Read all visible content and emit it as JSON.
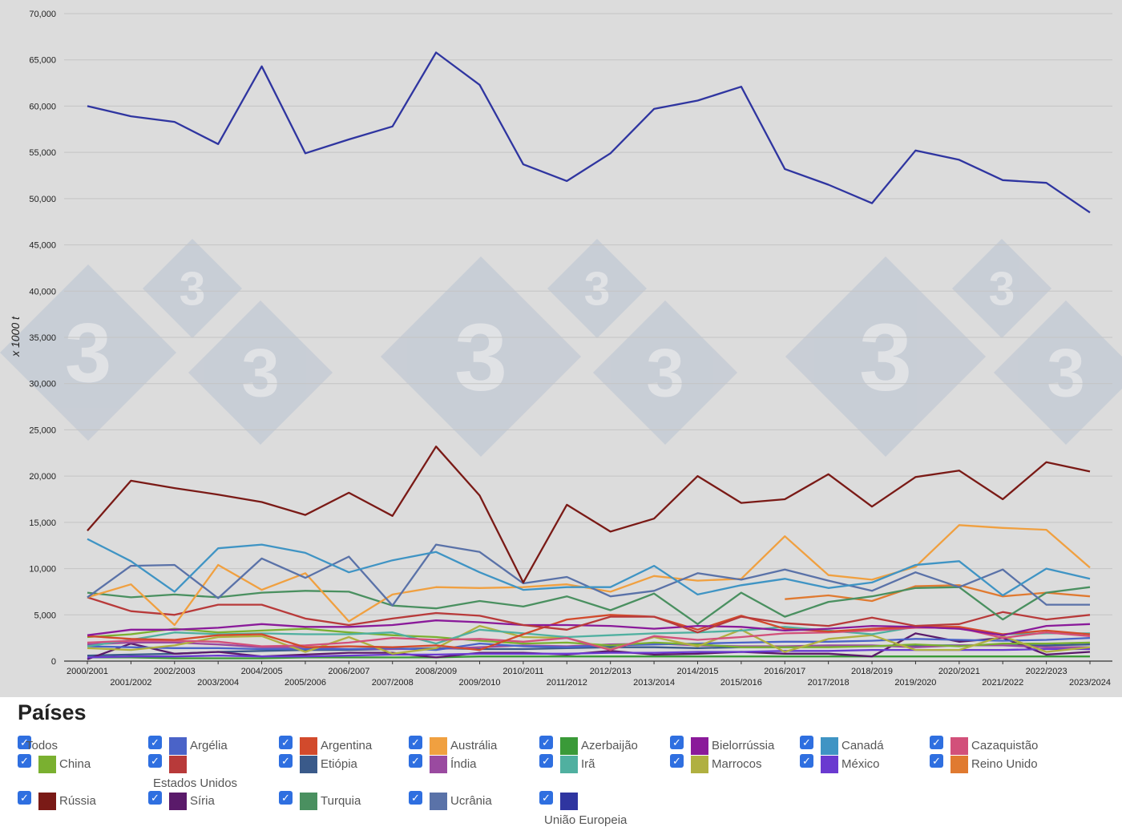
{
  "legend": {
    "title": "Países",
    "check_glyph": "✓",
    "items": [
      {
        "label": "Todos",
        "color": null
      },
      {
        "label": "Argélia",
        "color": "#4a63c8"
      },
      {
        "label": "Argentina",
        "color": "#d24a2c"
      },
      {
        "label": "Austrália",
        "color": "#f0a040"
      },
      {
        "label": "Azerbaijão",
        "color": "#3a9a38"
      },
      {
        "label": "Bielorrússia",
        "color": "#8a1a9a"
      },
      {
        "label": "Canadá",
        "color": "#3f94c4"
      },
      {
        "label": "Cazaquistão",
        "color": "#d2507a"
      },
      {
        "label": "China",
        "color": "#7ab030"
      },
      {
        "label": "Estados Unidos",
        "color": "#b83a3a"
      },
      {
        "label": "Etiópia",
        "color": "#3a5a8a"
      },
      {
        "label": "Índia",
        "color": "#9a4aa0"
      },
      {
        "label": "Irã",
        "color": "#50b0a0"
      },
      {
        "label": "Marrocos",
        "color": "#b0b040"
      },
      {
        "label": "México",
        "color": "#6a3ad0"
      },
      {
        "label": "Reino Unido",
        "color": "#e07a30"
      },
      {
        "label": "Rússia",
        "color": "#7a1a16"
      },
      {
        "label": "Síria",
        "color": "#5a1a6a"
      },
      {
        "label": "Turquia",
        "color": "#4a9060"
      },
      {
        "label": "Ucrânia",
        "color": "#5a72a8"
      },
      {
        "label": "União Europeia",
        "color": "#2f35a0"
      }
    ]
  },
  "chart_data": {
    "type": "line",
    "ylabel": "x 1000 t",
    "ylim": [
      0,
      70000
    ],
    "yticks": [
      0,
      5000,
      10000,
      15000,
      20000,
      25000,
      30000,
      35000,
      40000,
      45000,
      50000,
      55000,
      60000,
      65000,
      70000
    ],
    "ytick_labels": [
      "0",
      "5,000",
      "10,000",
      "15,000",
      "20,000",
      "25,000",
      "30,000",
      "35,000",
      "40,000",
      "45,000",
      "50,000",
      "55,000",
      "60,000",
      "65,000",
      "70,000"
    ],
    "grid": true,
    "background_color": "#dcdcdc",
    "watermark": "3",
    "categories": [
      "2000/2001",
      "2001/2002",
      "2002/2003",
      "2003/2004",
      "2004/2005",
      "2005/2006",
      "2006/2007",
      "2007/2008",
      "2008/2009",
      "2009/2010",
      "2010/2011",
      "2011/2012",
      "2012/2013",
      "2013/2014",
      "2014/2015",
      "2015/2016",
      "2016/2017",
      "2017/2018",
      "2018/2019",
      "2019/2020",
      "2020/2021",
      "2021/2022",
      "2022/2023",
      "2023/2024"
    ],
    "series": [
      {
        "name": "União Europeia",
        "color": "#2f35a0",
        "values": [
          60000,
          58900,
          58300,
          55900,
          64300,
          54900,
          56400,
          57800,
          65800,
          62300,
          53700,
          51900,
          54900,
          59700,
          60600,
          62100,
          53200,
          51500,
          49500,
          55200,
          54200,
          52000,
          51700,
          48500
        ]
      },
      {
        "name": "Rússia",
        "color": "#7a1a16",
        "values": [
          14100,
          19500,
          18700,
          18000,
          17200,
          15800,
          18200,
          15700,
          23200,
          17900,
          8500,
          16900,
          14000,
          15400,
          20000,
          17100,
          17500,
          20200,
          16700,
          19900,
          20600,
          17500,
          21500,
          20500
        ]
      },
      {
        "name": "Canadá",
        "color": "#3f94c4",
        "values": [
          13200,
          10800,
          7500,
          12200,
          12600,
          11700,
          9600,
          10900,
          11800,
          9600,
          7700,
          8000,
          8000,
          10300,
          7200,
          8200,
          8900,
          7900,
          8500,
          10400,
          10800,
          7100,
          10000,
          8900
        ]
      },
      {
        "name": "Ucrânia",
        "color": "#5a72a8",
        "values": [
          6900,
          10300,
          10400,
          6800,
          11100,
          9000,
          11300,
          6000,
          12600,
          11800,
          8400,
          9100,
          7000,
          7600,
          9500,
          8800,
          9900,
          8700,
          7600,
          9600,
          8000,
          9900,
          6100,
          6100
        ]
      },
      {
        "name": "Austrália",
        "color": "#f0a040",
        "values": [
          6900,
          8300,
          3900,
          10400,
          7700,
          9500,
          4300,
          7200,
          8000,
          7900,
          8000,
          8300,
          7500,
          9200,
          8700,
          8900,
          13500,
          9300,
          8800,
          10200,
          14700,
          14400,
          14200,
          10100
        ]
      },
      {
        "name": "Turquia",
        "color": "#4a9060",
        "values": [
          7400,
          6900,
          7200,
          6900,
          7400,
          7600,
          7500,
          6000,
          5700,
          6500,
          5900,
          7000,
          5500,
          7300,
          4000,
          7400,
          4800,
          6400,
          7000,
          7900,
          8000,
          4500,
          7400,
          8000
        ]
      },
      {
        "name": "Reino Unido",
        "color": "#e07a30",
        "values": [
          null,
          null,
          null,
          null,
          null,
          null,
          null,
          null,
          null,
          null,
          null,
          null,
          null,
          null,
          null,
          null,
          6700,
          7100,
          6500,
          8100,
          8200,
          7000,
          7400,
          7000
        ]
      },
      {
        "name": "Estados Unidos",
        "color": "#b83a3a",
        "values": [
          6900,
          5400,
          5000,
          6100,
          6100,
          4600,
          3900,
          4600,
          5200,
          4900,
          3900,
          3400,
          4800,
          4800,
          3100,
          4800,
          4100,
          3800,
          4700,
          3800,
          4000,
          5300,
          4500,
          5000
        ]
      },
      {
        "name": "Bielorrússia",
        "color": "#8a1a9a",
        "values": [
          2800,
          3400,
          3400,
          3600,
          4000,
          3700,
          3700,
          3900,
          4400,
          4200,
          3900,
          3900,
          3800,
          3500,
          3800,
          3700,
          3300,
          3500,
          3800,
          3700,
          3500,
          2800,
          3800,
          4000
        ]
      },
      {
        "name": "Argentina",
        "color": "#d24a2c",
        "values": [
          2700,
          2400,
          2300,
          2800,
          2900,
          1500,
          1600,
          1500,
          1700,
          1200,
          2900,
          4500,
          5000,
          4800,
          3400,
          4900,
          3500,
          3200,
          3500,
          3700,
          3700,
          2900,
          3300,
          2900
        ]
      },
      {
        "name": "Cazaquistão",
        "color": "#d2507a",
        "values": [
          2000,
          2200,
          2200,
          2100,
          1600,
          1700,
          2000,
          2500,
          2300,
          2400,
          2100,
          2500,
          1200,
          2700,
          2300,
          2600,
          3000,
          3100,
          3300,
          3600,
          3600,
          2500,
          3100,
          2700
        ]
      },
      {
        "name": "Irã",
        "color": "#50b0a0",
        "values": [
          1600,
          2300,
          3100,
          2900,
          3000,
          2900,
          2900,
          3100,
          1900,
          3400,
          3000,
          2600,
          2800,
          3000,
          3100,
          3300,
          3700,
          3300,
          2900,
          3700,
          3500,
          2900,
          3000,
          3000
        ]
      },
      {
        "name": "Marrocos",
        "color": "#b0b040",
        "values": [
          1400,
          1200,
          1700,
          2600,
          2700,
          1000,
          2600,
          800,
          1400,
          3800,
          2600,
          2500,
          1300,
          2600,
          1600,
          3400,
          1000,
          2400,
          2800,
          1200,
          1200,
          2700,
          1000,
          1500
        ]
      },
      {
        "name": "China",
        "color": "#7ab030",
        "values": [
          2600,
          2900,
          3500,
          3100,
          3300,
          3500,
          3100,
          2800,
          2600,
          2200,
          1900,
          2000,
          1700,
          2000,
          1800,
          1500,
          1500,
          1500,
          1600,
          1800,
          1600,
          1900,
          1900,
          2000
        ]
      },
      {
        "name": "Argélia",
        "color": "#4a63c8",
        "values": [
          1600,
          1500,
          1400,
          1400,
          1300,
          1300,
          1300,
          1400,
          1200,
          1900,
          1600,
          1500,
          1700,
          1800,
          1900,
          2000,
          2100,
          2100,
          2200,
          2400,
          2300,
          2200,
          2300,
          2500
        ]
      },
      {
        "name": "Índia",
        "color": "#9a4aa0",
        "values": [
          1800,
          2000,
          2000,
          1800,
          1500,
          1500,
          1300,
          1300,
          1300,
          1500,
          1700,
          1600,
          1800,
          1900,
          1700,
          1600,
          1600,
          1700,
          1700,
          1500,
          1700,
          1700,
          1500,
          1500
        ]
      },
      {
        "name": "México",
        "color": "#6a3ad0",
        "values": [
          400,
          500,
          500,
          600,
          500,
          500,
          600,
          700,
          700,
          800,
          800,
          800,
          900,
          900,
          1000,
          1000,
          1100,
          1100,
          1200,
          1200,
          1200,
          1200,
          1300,
          1300
        ]
      },
      {
        "name": "Síria",
        "color": "#5a1a6a",
        "values": [
          200,
          1900,
          800,
          1000,
          500,
          700,
          900,
          900,
          400,
          900,
          900,
          700,
          1100,
          700,
          800,
          1000,
          800,
          800,
          500,
          3000,
          2100,
          2500,
          700,
          1000
        ]
      },
      {
        "name": "Etiópia",
        "color": "#3a5a8a",
        "values": [
          600,
          700,
          800,
          1000,
          1100,
          1200,
          1200,
          1300,
          1400,
          1300,
          1300,
          1400,
          1500,
          1500,
          1400,
          1500,
          1500,
          1600,
          1600,
          1700,
          1700,
          1700,
          1700,
          1800
        ]
      },
      {
        "name": "Azerbaijão",
        "color": "#3a9a38",
        "values": [
          400,
          400,
          300,
          300,
          300,
          400,
          400,
          400,
          400,
          500,
          500,
          500,
          500,
          500,
          500,
          500,
          500,
          500,
          500,
          500,
          500,
          500,
          500,
          500
        ]
      }
    ]
  }
}
